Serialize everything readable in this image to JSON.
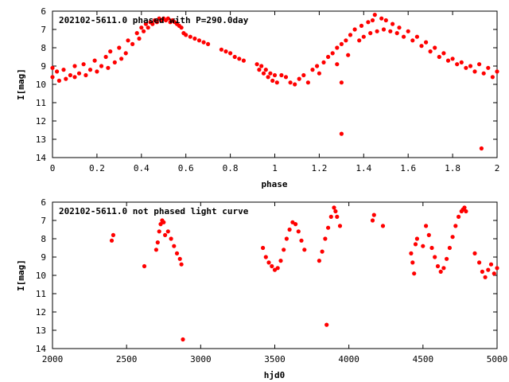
{
  "chart_data": [
    {
      "type": "scatter",
      "title": "202102-5611.0 phased with P=290.0day",
      "xlabel": "phase",
      "ylabel": "I[mag]",
      "xlim": [
        0,
        2
      ],
      "ylim": [
        14,
        6
      ],
      "y_inverted": true,
      "grid": false,
      "color": "#ff0000",
      "x_ticks": [
        "0",
        "0.2",
        "0.4",
        "0.6",
        "0.8",
        "1",
        "1.2",
        "1.4",
        "1.6",
        "1.8",
        "2"
      ],
      "y_ticks": [
        "6",
        "7",
        "8",
        "9",
        "10",
        "11",
        "12",
        "13",
        "14"
      ],
      "series": [
        {
          "values": [
            [
              0.0,
              9.1
            ],
            [
              0.0,
              9.6
            ],
            [
              0.02,
              9.3
            ],
            [
              0.03,
              9.8
            ],
            [
              0.05,
              9.2
            ],
            [
              0.06,
              9.7
            ],
            [
              0.08,
              9.5
            ],
            [
              0.1,
              9.0
            ],
            [
              0.1,
              9.6
            ],
            [
              0.12,
              9.4
            ],
            [
              0.14,
              8.9
            ],
            [
              0.15,
              9.5
            ],
            [
              0.17,
              9.2
            ],
            [
              0.19,
              8.7
            ],
            [
              0.2,
              9.3
            ],
            [
              0.22,
              9.0
            ],
            [
              0.24,
              8.5
            ],
            [
              0.25,
              9.1
            ],
            [
              0.26,
              8.2
            ],
            [
              0.28,
              8.8
            ],
            [
              0.3,
              8.0
            ],
            [
              0.31,
              8.6
            ],
            [
              0.33,
              8.3
            ],
            [
              0.34,
              7.6
            ],
            [
              0.36,
              7.8
            ],
            [
              0.38,
              7.2
            ],
            [
              0.39,
              7.5
            ],
            [
              0.4,
              6.9
            ],
            [
              0.41,
              7.1
            ],
            [
              0.42,
              6.7
            ],
            [
              0.43,
              6.9
            ],
            [
              0.44,
              6.6
            ],
            [
              0.45,
              6.7
            ],
            [
              0.46,
              6.5
            ],
            [
              0.47,
              6.6
            ],
            [
              0.48,
              6.4
            ],
            [
              0.49,
              6.5
            ],
            [
              0.5,
              6.4
            ],
            [
              0.51,
              6.5
            ],
            [
              0.52,
              6.4
            ],
            [
              0.53,
              6.6
            ],
            [
              0.54,
              6.5
            ],
            [
              0.55,
              6.6
            ],
            [
              0.56,
              6.7
            ],
            [
              0.57,
              6.8
            ],
            [
              0.58,
              6.9
            ],
            [
              0.59,
              7.2
            ],
            [
              0.6,
              7.3
            ],
            [
              0.62,
              7.4
            ],
            [
              0.64,
              7.5
            ],
            [
              0.66,
              7.6
            ],
            [
              0.68,
              7.7
            ],
            [
              0.7,
              7.8
            ],
            [
              0.76,
              8.1
            ],
            [
              0.78,
              8.2
            ],
            [
              0.8,
              8.3
            ],
            [
              0.82,
              8.5
            ],
            [
              0.84,
              8.6
            ],
            [
              0.86,
              8.7
            ],
            [
              0.92,
              8.9
            ],
            [
              0.94,
              9.0
            ],
            [
              0.96,
              9.2
            ],
            [
              0.98,
              9.4
            ],
            [
              1.0,
              9.5
            ],
            [
              0.93,
              9.2
            ],
            [
              0.95,
              9.4
            ],
            [
              0.97,
              9.6
            ],
            [
              0.99,
              9.8
            ],
            [
              1.01,
              9.9
            ],
            [
              1.03,
              9.5
            ],
            [
              1.05,
              9.6
            ],
            [
              1.07,
              9.9
            ],
            [
              1.09,
              10.0
            ],
            [
              1.11,
              9.7
            ],
            [
              1.13,
              9.5
            ],
            [
              1.15,
              9.9
            ],
            [
              1.17,
              9.2
            ],
            [
              1.19,
              9.0
            ],
            [
              1.2,
              9.4
            ],
            [
              1.22,
              8.8
            ],
            [
              1.24,
              8.5
            ],
            [
              1.26,
              8.3
            ],
            [
              1.28,
              8.9
            ],
            [
              1.28,
              8.0
            ],
            [
              1.3,
              7.8
            ],
            [
              1.3,
              9.9
            ],
            [
              1.32,
              7.6
            ],
            [
              1.33,
              8.4
            ],
            [
              1.34,
              7.3
            ],
            [
              1.36,
              7.0
            ],
            [
              1.38,
              7.6
            ],
            [
              1.39,
              6.8
            ],
            [
              1.4,
              7.4
            ],
            [
              1.42,
              6.6
            ],
            [
              1.43,
              7.2
            ],
            [
              1.44,
              6.5
            ],
            [
              1.45,
              6.2
            ],
            [
              1.46,
              7.1
            ],
            [
              1.48,
              6.4
            ],
            [
              1.49,
              7.0
            ],
            [
              1.5,
              6.5
            ],
            [
              1.52,
              7.1
            ],
            [
              1.53,
              6.7
            ],
            [
              1.55,
              7.2
            ],
            [
              1.56,
              6.9
            ],
            [
              1.58,
              7.4
            ],
            [
              1.6,
              7.1
            ],
            [
              1.62,
              7.6
            ],
            [
              1.64,
              7.4
            ],
            [
              1.66,
              7.9
            ],
            [
              1.68,
              7.7
            ],
            [
              1.7,
              8.2
            ],
            [
              1.72,
              8.0
            ],
            [
              1.74,
              8.5
            ],
            [
              1.76,
              8.3
            ],
            [
              1.78,
              8.7
            ],
            [
              1.8,
              8.6
            ],
            [
              1.82,
              8.9
            ],
            [
              1.84,
              8.8
            ],
            [
              1.86,
              9.1
            ],
            [
              1.88,
              9.0
            ],
            [
              1.9,
              9.3
            ],
            [
              1.92,
              8.9
            ],
            [
              1.94,
              9.4
            ],
            [
              1.96,
              9.1
            ],
            [
              1.98,
              9.6
            ],
            [
              2.0,
              9.3
            ],
            [
              1.3,
              12.7
            ],
            [
              1.93,
              13.5
            ]
          ]
        }
      ]
    },
    {
      "type": "scatter",
      "title": "202102-5611.0 not phased light curve",
      "xlabel": "hjd0",
      "ylabel": "I[mag]",
      "xlim": [
        2000,
        5000
      ],
      "ylim": [
        14,
        6
      ],
      "y_inverted": true,
      "grid": false,
      "color": "#ff0000",
      "x_ticks": [
        "2000",
        "2500",
        "3000",
        "3500",
        "4000",
        "4500",
        "5000"
      ],
      "y_ticks": [
        "6",
        "7",
        "8",
        "9",
        "10",
        "11",
        "12",
        "13",
        "14"
      ],
      "series": [
        {
          "values": [
            [
              2400,
              8.1
            ],
            [
              2410,
              7.8
            ],
            [
              2620,
              9.5
            ],
            [
              2700,
              8.6
            ],
            [
              2710,
              8.2
            ],
            [
              2720,
              7.6
            ],
            [
              2730,
              7.2
            ],
            [
              2740,
              7.0
            ],
            [
              2750,
              7.1
            ],
            [
              2760,
              7.8
            ],
            [
              2780,
              7.6
            ],
            [
              2800,
              8.0
            ],
            [
              2820,
              8.4
            ],
            [
              2840,
              8.8
            ],
            [
              2860,
              9.1
            ],
            [
              2870,
              9.4
            ],
            [
              2880,
              13.5
            ],
            [
              3420,
              8.5
            ],
            [
              3440,
              9.0
            ],
            [
              3460,
              9.3
            ],
            [
              3480,
              9.5
            ],
            [
              3500,
              9.7
            ],
            [
              3520,
              9.6
            ],
            [
              3540,
              9.2
            ],
            [
              3560,
              8.6
            ],
            [
              3580,
              8.0
            ],
            [
              3600,
              7.5
            ],
            [
              3620,
              7.1
            ],
            [
              3640,
              7.2
            ],
            [
              3660,
              7.6
            ],
            [
              3680,
              8.1
            ],
            [
              3700,
              8.6
            ],
            [
              3800,
              9.2
            ],
            [
              3820,
              8.7
            ],
            [
              3840,
              8.0
            ],
            [
              3850,
              12.7
            ],
            [
              3860,
              7.4
            ],
            [
              3880,
              6.8
            ],
            [
              3900,
              6.3
            ],
            [
              3910,
              6.5
            ],
            [
              3920,
              6.8
            ],
            [
              3940,
              7.3
            ],
            [
              4160,
              7.0
            ],
            [
              4170,
              6.7
            ],
            [
              4230,
              7.3
            ],
            [
              4420,
              8.8
            ],
            [
              4430,
              9.3
            ],
            [
              4440,
              9.9
            ],
            [
              4450,
              8.3
            ],
            [
              4460,
              8.0
            ],
            [
              4500,
              8.4
            ],
            [
              4520,
              7.3
            ],
            [
              4540,
              7.8
            ],
            [
              4560,
              8.5
            ],
            [
              4580,
              9.0
            ],
            [
              4600,
              9.5
            ],
            [
              4620,
              9.8
            ],
            [
              4640,
              9.6
            ],
            [
              4660,
              9.1
            ],
            [
              4680,
              8.5
            ],
            [
              4700,
              7.9
            ],
            [
              4720,
              7.3
            ],
            [
              4740,
              6.8
            ],
            [
              4760,
              6.5
            ],
            [
              4770,
              6.4
            ],
            [
              4780,
              6.3
            ],
            [
              4790,
              6.5
            ],
            [
              4850,
              8.8
            ],
            [
              4880,
              9.3
            ],
            [
              4900,
              9.8
            ],
            [
              4920,
              10.1
            ],
            [
              4940,
              9.7
            ],
            [
              4960,
              9.4
            ],
            [
              4980,
              9.9
            ],
            [
              5000,
              9.6
            ]
          ]
        }
      ]
    }
  ]
}
